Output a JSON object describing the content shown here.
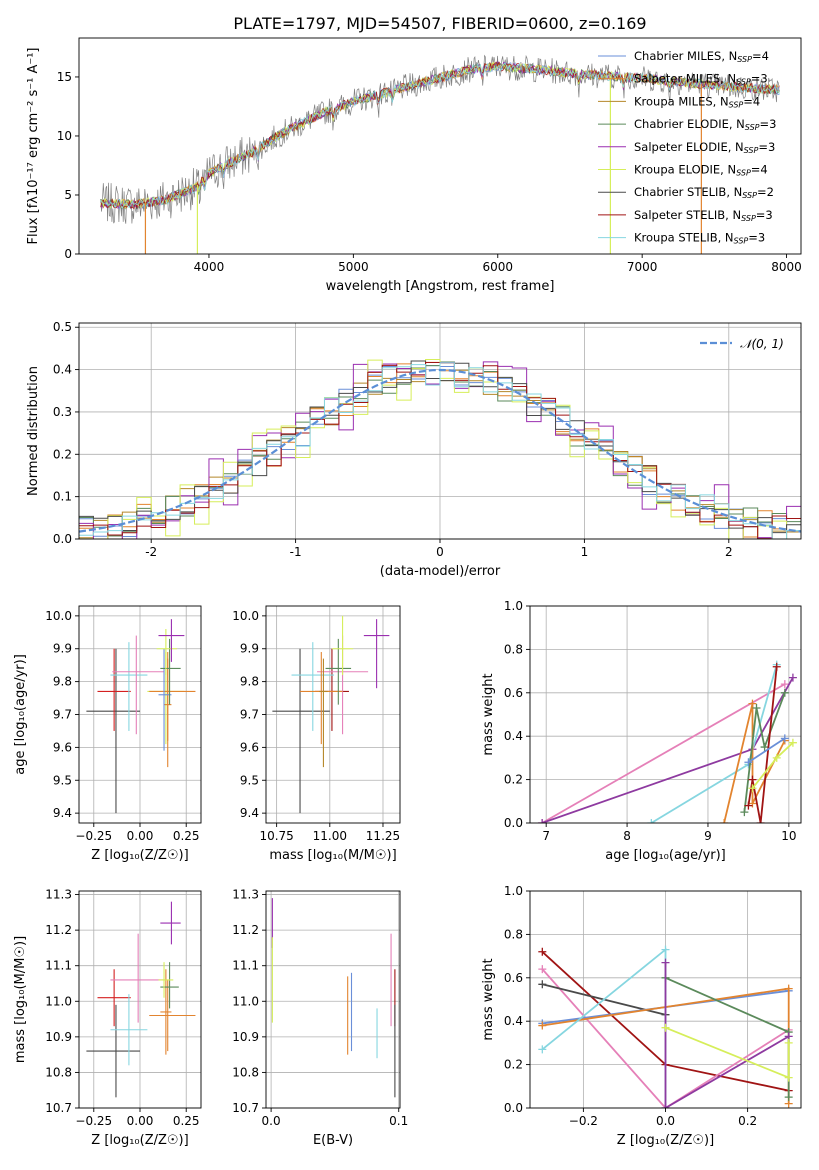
{
  "title": "PLATE=1797, MJD=54507, FIBERID=0600, z=0.169",
  "colors": {
    "chabrier_miles": "#6a8fd8",
    "salpeter_miles": "#e2842f",
    "kroupa_miles": "#b4872a",
    "chabrier_elodie": "#5b8a5b",
    "salpeter_elodie": "#9a2fb0",
    "kroupa_elodie": "#d6ee5a",
    "chabrier_stelib": "#4a4a4a",
    "salpeter_stelib": "#a01414",
    "kroupa_stelib": "#86d6e0",
    "salpeter_elodie_line": "#8e3aa0",
    "kroupa_elodie_line": "#e580b8",
    "normal": "#5b8fd6",
    "red_marker": "#d42020",
    "grid": "#b0b0b0"
  },
  "chart_data": [
    {
      "type": "line",
      "panel": "spectrum",
      "xlabel": "wavelength [Angstrom, rest frame]",
      "ylabel": "Flux [fλ10⁻¹⁷ erg cm⁻² s⁻¹ A⁻¹]",
      "xlim": [
        3100,
        8100
      ],
      "ylim": [
        0,
        18.3
      ],
      "xticks": [
        4000,
        5000,
        6000,
        7000,
        8000
      ],
      "yticks": [
        0,
        5,
        10,
        15
      ],
      "legend": [
        "Chabrier MILES, N_SSP=4",
        "Salpeter MILES, N_SSP=3",
        "Kroupa MILES, N_SSP=4",
        "Chabrier ELODIE, N_SSP=3",
        "Salpeter ELODIE, N_SSP=3",
        "Kroupa ELODIE, N_SSP=4",
        "Chabrier STELIB, N_SSP=2",
        "Salpeter STELIB, N_SSP=3",
        "Kroupa STELIB, N_SSP=3"
      ],
      "legend_labels": [
        {
          "main": "Chabrier MILES, N",
          "sub": "SSP",
          "tail": "=4"
        },
        {
          "main": "Salpeter MILES, N",
          "sub": "SSP",
          "tail": "=3"
        },
        {
          "main": "Kroupa MILES, N",
          "sub": "SSP",
          "tail": "=4"
        },
        {
          "main": "Chabrier ELODIE, N",
          "sub": "SSP",
          "tail": "=3"
        },
        {
          "main": "Salpeter ELODIE, N",
          "sub": "SSP",
          "tail": "=3"
        },
        {
          "main": "Kroupa ELODIE, N",
          "sub": "SSP",
          "tail": "=4"
        },
        {
          "main": "Chabrier STELIB, N",
          "sub": "SSP",
          "tail": "=2"
        },
        {
          "main": "Salpeter STELIB, N",
          "sub": "SSP",
          "tail": "=3"
        },
        {
          "main": "Kroupa STELIB, N",
          "sub": "SSP",
          "tail": "=3"
        }
      ],
      "data_trend": {
        "x": [
          3250,
          3500,
          3700,
          3900,
          4000,
          4100,
          4300,
          4500,
          4800,
          5000,
          5200,
          5500,
          5800,
          6000,
          6300,
          6600,
          7000,
          7400,
          7800,
          7950
        ],
        "y": [
          4.3,
          4.2,
          4.6,
          5.6,
          6.8,
          7.5,
          8.6,
          10.2,
          12.0,
          12.9,
          13.6,
          14.6,
          15.6,
          15.9,
          15.6,
          15.2,
          14.9,
          14.4,
          14.0,
          13.9
        ]
      }
    },
    {
      "type": "histogram",
      "panel": "residuals",
      "xlabel": "(data-model)/error",
      "ylabel": "Normed distribution",
      "xlim": [
        -2.5,
        2.5
      ],
      "ylim": [
        0,
        0.51
      ],
      "xticks": [
        -2,
        -1,
        0,
        1,
        2
      ],
      "yticks": [
        0.0,
        0.1,
        0.2,
        0.3,
        0.4,
        0.5
      ],
      "bin_width": 0.1,
      "reference_curve": "N(0,1)",
      "legend": [
        "𝒩(0, 1)"
      ]
    },
    {
      "type": "scatter",
      "panel": "age_vs_Z",
      "xlabel": "Z [log₁₀(Z/Z☉)]",
      "ylabel": "age  [log₁₀(age/yr)]",
      "xlim": [
        -0.33,
        0.33
      ],
      "ylim": [
        9.37,
        10.03
      ],
      "xticks": [
        -0.25,
        0.0,
        0.25
      ],
      "xticklabels": [
        "−0.25",
        "0.00",
        "0.25"
      ],
      "yticks": [
        9.4,
        9.5,
        9.6,
        9.7,
        9.8,
        9.9,
        10.0
      ],
      "points": [
        {
          "x": -0.13,
          "xerr": [
            0.16,
            0.13
          ],
          "y": 9.71,
          "yerr": [
            0.31,
            0.19
          ],
          "c": "chabrier_stelib"
        },
        {
          "x": -0.14,
          "xerr": [
            0.09,
            0.09
          ],
          "y": 9.77,
          "yerr": [
            0.12,
            0.13
          ],
          "c": "red_marker"
        },
        {
          "x": -0.06,
          "xerr": [
            0.1,
            0.1
          ],
          "y": 9.82,
          "yerr": [
            0.17,
            0.1
          ],
          "c": "kroupa_stelib"
        },
        {
          "x": -0.02,
          "xerr": [
            0.13,
            0.15
          ],
          "y": 9.83,
          "yerr": [
            0.19,
            0.11
          ],
          "c": "kroupa_elodie_line"
        },
        {
          "x": 0.14,
          "xerr": [
            0.1,
            0.1
          ],
          "y": 9.77,
          "yerr": [
            0.16,
            0.12
          ],
          "c": "kroupa_elodie"
        },
        {
          "x": 0.15,
          "xerr": [
            0.02,
            0.02
          ],
          "y": 9.73,
          "yerr": [
            0.19,
            0.16
          ],
          "c": "salpeter_miles"
        },
        {
          "x": 0.15,
          "xerr": [
            0.1,
            0.15
          ],
          "y": 9.77,
          "yerr": [
            0.15,
            0.1
          ],
          "c": "salpeter_miles"
        },
        {
          "x": 0.13,
          "xerr": [
            0.03,
            0.04
          ],
          "y": 9.76,
          "yerr": [
            0.17,
            0.14
          ],
          "c": "chabrier_miles"
        },
        {
          "x": 0.16,
          "xerr": [
            0.05,
            0.06
          ],
          "y": 9.84,
          "yerr": [
            0.11,
            0.09
          ],
          "c": "chabrier_elodie"
        },
        {
          "x": 0.14,
          "xerr": [
            0.05,
            0.06
          ],
          "y": 9.9,
          "yerr": [
            0.08,
            0.06
          ],
          "c": "kroupa_elodie"
        },
        {
          "x": 0.17,
          "xerr": [
            0.07,
            0.07
          ],
          "y": 9.94,
          "yerr": [
            0.08,
            0.05
          ],
          "c": "salpeter_elodie"
        }
      ]
    },
    {
      "type": "scatter",
      "panel": "age_vs_mass",
      "xlabel": "mass [log₁₀(M/M☉)]",
      "ylabel": "",
      "xlim": [
        10.7,
        11.33
      ],
      "ylim": [
        9.37,
        10.03
      ],
      "xticks": [
        10.75,
        11.0,
        11.25
      ],
      "xticklabels": [
        "10.75",
        "11.00",
        "11.25"
      ],
      "yticks": [
        9.4,
        9.5,
        9.6,
        9.7,
        9.8,
        9.9,
        10.0
      ],
      "points": [
        {
          "x": 10.86,
          "xerr": [
            0.13,
            0.14
          ],
          "y": 9.71,
          "yerr": [
            0.31,
            0.19
          ],
          "c": "chabrier_stelib"
        },
        {
          "x": 11.01,
          "xerr": [
            0.08,
            0.08
          ],
          "y": 9.77,
          "yerr": [
            0.12,
            0.13
          ],
          "c": "salpeter_stelib"
        },
        {
          "x": 10.92,
          "xerr": [
            0.1,
            0.1
          ],
          "y": 9.82,
          "yerr": [
            0.17,
            0.1
          ],
          "c": "kroupa_stelib"
        },
        {
          "x": 11.06,
          "xerr": [
            0.12,
            0.12
          ],
          "y": 9.83,
          "yerr": [
            0.19,
            0.11
          ],
          "c": "kroupa_elodie_line"
        },
        {
          "x": 10.96,
          "xerr": [
            0.1,
            0.1
          ],
          "y": 9.77,
          "yerr": [
            0.16,
            0.12
          ],
          "c": "salpeter_miles"
        },
        {
          "x": 10.97,
          "xerr": [
            0.02,
            0.02
          ],
          "y": 9.77,
          "yerr": [
            0.23,
            0.1
          ],
          "c": "kroupa_miles"
        },
        {
          "x": 11.04,
          "xerr": [
            0.06,
            0.06
          ],
          "y": 9.84,
          "yerr": [
            0.11,
            0.09
          ],
          "c": "chabrier_elodie"
        },
        {
          "x": 11.06,
          "xerr": [
            0.05,
            0.05
          ],
          "y": 9.9,
          "yerr": [
            0.08,
            0.1
          ],
          "c": "kroupa_elodie"
        },
        {
          "x": 11.22,
          "xerr": [
            0.06,
            0.06
          ],
          "y": 9.94,
          "yerr": [
            0.16,
            0.05
          ],
          "c": "salpeter_elodie"
        }
      ]
    },
    {
      "type": "line",
      "panel": "massweight_vs_age",
      "xlabel": "age  [log₁₀(age/yr)]",
      "ylabel": "mass weight",
      "xlim": [
        6.8,
        10.15
      ],
      "ylim": [
        0.0,
        1.0
      ],
      "xticks": [
        7,
        8,
        9,
        10
      ],
      "xticklabels": [
        "7",
        "8",
        "9",
        "10"
      ],
      "yticks": [
        0.0,
        0.2,
        0.4,
        0.6,
        0.8,
        1.0
      ],
      "series": [
        {
          "c": "kroupa_elodie_line",
          "x": [
            6.95,
            9.95
          ],
          "y": [
            0.0,
            0.64
          ]
        },
        {
          "c": "salpeter_elodie_line",
          "x": [
            6.95,
            9.55,
            10.05
          ],
          "y": [
            0.0,
            0.34,
            0.67
          ]
        },
        {
          "c": "kroupa_stelib",
          "x": [
            8.3,
            9.5,
            9.85
          ],
          "y": [
            0.0,
            0.27,
            0.73
          ]
        },
        {
          "c": "salpeter_miles",
          "x": [
            9.2,
            9.55,
            9.55,
            9.95
          ],
          "y": [
            0.0,
            0.55,
            0.09,
            0.38
          ]
        },
        {
          "c": "chabrier_elodie",
          "x": [
            9.45,
            9.6,
            9.7,
            9.95
          ],
          "y": [
            0.05,
            0.53,
            0.35,
            0.6
          ]
        },
        {
          "c": "salpeter_stelib",
          "x": [
            9.5,
            9.55,
            9.65,
            9.85
          ],
          "y": [
            0.08,
            0.2,
            0.0,
            0.72
          ]
        },
        {
          "c": "kroupa_elodie",
          "x": [
            9.55,
            9.85,
            10.05
          ],
          "y": [
            0.16,
            0.3,
            0.37
          ]
        },
        {
          "c": "chabrier_miles",
          "x": [
            9.5,
            9.95
          ],
          "y": [
            0.28,
            0.39
          ]
        }
      ]
    },
    {
      "type": "scatter",
      "panel": "mass_vs_Z",
      "xlabel": "Z [log₁₀(Z/Z☉)]",
      "ylabel": "mass [log₁₀(M/M☉)]",
      "xlim": [
        -0.33,
        0.33
      ],
      "ylim": [
        10.7,
        11.31
      ],
      "xticks": [
        -0.25,
        0.0,
        0.25
      ],
      "xticklabels": [
        "−0.25",
        "0.00",
        "0.25"
      ],
      "yticks": [
        10.7,
        10.8,
        10.9,
        11.0,
        11.1,
        11.2,
        11.3
      ],
      "points": [
        {
          "x": -0.13,
          "xerr": [
            0.16,
            0.13
          ],
          "y": 10.86,
          "yerr": [
            0.13,
            0.13
          ],
          "c": "chabrier_stelib"
        },
        {
          "x": -0.14,
          "xerr": [
            0.09,
            0.09
          ],
          "y": 11.01,
          "yerr": [
            0.08,
            0.08
          ],
          "c": "red_marker"
        },
        {
          "x": -0.06,
          "xerr": [
            0.1,
            0.1
          ],
          "y": 10.92,
          "yerr": [
            0.1,
            0.1
          ],
          "c": "kroupa_stelib"
        },
        {
          "x": -0.01,
          "xerr": [
            0.15,
            0.16
          ],
          "y": 11.06,
          "yerr": [
            0.12,
            0.13
          ],
          "c": "kroupa_elodie_line"
        },
        {
          "x": 0.14,
          "xerr": [
            0.03,
            0.03
          ],
          "y": 10.97,
          "yerr": [
            0.12,
            0.12
          ],
          "c": "salpeter_miles"
        },
        {
          "x": 0.15,
          "xerr": [
            0.1,
            0.15
          ],
          "y": 10.96,
          "yerr": [
            0.1,
            0.1
          ],
          "c": "salpeter_miles"
        },
        {
          "x": 0.16,
          "xerr": [
            0.05,
            0.05
          ],
          "y": 11.04,
          "yerr": [
            0.06,
            0.07
          ],
          "c": "chabrier_elodie"
        },
        {
          "x": 0.13,
          "xerr": [
            0.03,
            0.05
          ],
          "y": 11.06,
          "yerr": [
            0.05,
            0.05
          ],
          "c": "kroupa_elodie"
        },
        {
          "x": 0.17,
          "xerr": [
            0.06,
            0.05
          ],
          "y": 11.22,
          "yerr": [
            0.06,
            0.06
          ],
          "c": "salpeter_elodie"
        }
      ]
    },
    {
      "type": "scatter",
      "panel": "mass_vs_EBV",
      "xlabel": "E(B-V)",
      "ylabel": "",
      "xlim": [
        -0.004,
        0.101
      ],
      "ylim": [
        10.7,
        11.31
      ],
      "xticks": [
        0.0,
        0.1
      ],
      "xticklabels": [
        "0.0",
        "0.1"
      ],
      "yticks": [
        10.7,
        10.8,
        10.9,
        11.0,
        11.1,
        11.2,
        11.3
      ],
      "points": [
        {
          "x": 0.001,
          "y": 11.22,
          "yerr": [
            0.07,
            0.07
          ],
          "c": "salpeter_elodie"
        },
        {
          "x": 0.001,
          "y": 11.06,
          "yerr": [
            0.12,
            0.12
          ],
          "c": "kroupa_elodie"
        },
        {
          "x": 0.06,
          "y": 10.96,
          "yerr": [
            0.11,
            0.11
          ],
          "c": "salpeter_miles"
        },
        {
          "x": 0.063,
          "y": 10.97,
          "yerr": [
            0.11,
            0.11
          ],
          "c": "chabrier_miles"
        },
        {
          "x": 0.083,
          "y": 10.91,
          "yerr": [
            0.07,
            0.07
          ],
          "c": "kroupa_stelib"
        },
        {
          "x": 0.094,
          "y": 11.06,
          "yerr": [
            0.13,
            0.13
          ],
          "c": "kroupa_elodie_line"
        },
        {
          "x": 0.097,
          "y": 11.01,
          "yerr": [
            0.08,
            0.08
          ],
          "c": "salpeter_stelib"
        },
        {
          "x": 0.097,
          "y": 10.86,
          "yerr": [
            0.13,
            0.13
          ],
          "c": "chabrier_stelib"
        }
      ]
    },
    {
      "type": "line",
      "panel": "massweight_vs_Z",
      "xlabel": "Z [log₁₀(Z/Z☉)]",
      "ylabel": "mass weight",
      "xlim": [
        -0.33,
        0.33
      ],
      "ylim": [
        0.0,
        1.0
      ],
      "xticks": [
        -0.2,
        0.0,
        0.2
      ],
      "xticklabels": [
        "−0.2",
        "0.0",
        "0.2"
      ],
      "yticks": [
        0.0,
        0.2,
        0.4,
        0.6,
        0.8,
        1.0
      ],
      "series": [
        {
          "c": "salpeter_stelib",
          "x": [
            -0.3,
            0.0,
            0.3
          ],
          "y": [
            0.72,
            0.2,
            0.08
          ]
        },
        {
          "c": "kroupa_elodie_line",
          "x": [
            -0.3,
            0.0,
            0.3
          ],
          "y": [
            0.64,
            0.0,
            0.36
          ]
        },
        {
          "c": "chabrier_stelib",
          "x": [
            -0.3,
            0.0
          ],
          "y": [
            0.57,
            0.43
          ]
        },
        {
          "c": "chabrier_miles",
          "x": [
            -0.3,
            0.3
          ],
          "y": [
            0.39,
            0.54
          ]
        },
        {
          "c": "salpeter_miles",
          "x": [
            -0.3,
            0.3,
            0.3
          ],
          "y": [
            0.38,
            0.55,
            0.02
          ]
        },
        {
          "c": "kroupa_stelib",
          "x": [
            -0.3,
            0.0,
            0.0
          ],
          "y": [
            0.27,
            0.73,
            0.0
          ]
        },
        {
          "c": "chabrier_elodie",
          "x": [
            0.0,
            0.3,
            0.3
          ],
          "y": [
            0.6,
            0.35,
            0.05
          ]
        },
        {
          "c": "salpeter_elodie_line",
          "x": [
            0.0,
            0.0,
            0.3
          ],
          "y": [
            0.67,
            0.0,
            0.33
          ]
        },
        {
          "c": "kroupa_elodie",
          "x": [
            0.0,
            0.3,
            0.3
          ],
          "y": [
            0.37,
            0.14,
            0.3
          ]
        }
      ]
    }
  ]
}
